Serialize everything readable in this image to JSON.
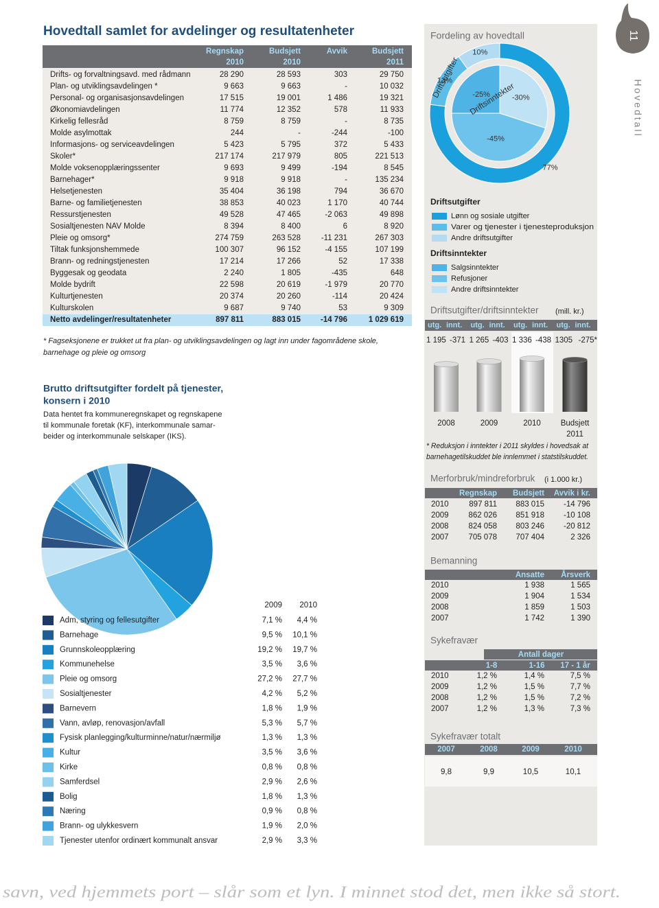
{
  "header": {
    "title": "Hovedtall samlet for avdelinger og resultatenheter",
    "page_number": "11",
    "section": "Hovedtall"
  },
  "main_table": {
    "columns": [
      [
        "Regnskap",
        "2010"
      ],
      [
        "Budsjett",
        "2010"
      ],
      [
        "Avvik"
      ],
      [
        "Budsjett",
        "2011"
      ]
    ],
    "rows": [
      [
        "Drifts- og forvaltningsavd. med rådmann",
        "28 290",
        "28 593",
        "303",
        "29 750"
      ],
      [
        "Plan- og utviklingsavdelingen *",
        "9 663",
        "9 663",
        "-",
        "10 032"
      ],
      [
        "Personal- og organisasjonsavdelingen",
        "17 515",
        "19 001",
        "1 486",
        "19 321"
      ],
      [
        "Økonomiavdelingen",
        "11 774",
        "12 352",
        "578",
        "11 933"
      ],
      [
        "Kirkelig fellesråd",
        "8 759",
        "8 759",
        "-",
        "8 735"
      ],
      [
        "Molde asylmottak",
        "244",
        "-",
        "-244",
        "-100"
      ],
      [
        "Informasjons- og serviceavdelingen",
        "5 423",
        "5 795",
        "372",
        "5 433"
      ],
      [
        "Skoler*",
        "217 174",
        "217 979",
        "805",
        "221 513"
      ],
      [
        "Molde voksenopplæringssenter",
        "9 693",
        "9 499",
        "-194",
        "8 545"
      ],
      [
        "Barnehager*",
        "9 918",
        "9 918",
        "-",
        "135 234"
      ],
      [
        "Helsetjenesten",
        "35 404",
        "36 198",
        "794",
        "36 670"
      ],
      [
        "Barne- og familietjenesten",
        "38 853",
        "40 023",
        "1 170",
        "40 744"
      ],
      [
        "Ressurstjenesten",
        "49 528",
        "47 465",
        "-2 063",
        "49 898"
      ],
      [
        "Sosialtjenesten NAV Molde",
        "8 394",
        "8 400",
        "6",
        "8 920"
      ],
      [
        "Pleie og omsorg*",
        "274 759",
        "263 528",
        "-11 231",
        "267 303"
      ],
      [
        "Tiltak funksjonshemmede",
        "100 307",
        "96 152",
        "-4 155",
        "107 199"
      ],
      [
        "Brann- og redningstjenesten",
        "17 214",
        "17 266",
        "52",
        "17 338"
      ],
      [
        "Byggesak og geodata",
        "2 240",
        "1 805",
        "-435",
        "648"
      ],
      [
        "Molde bydrift",
        "22 598",
        "20 619",
        "-1 979",
        "20 770"
      ],
      [
        "Kulturtjenesten",
        "20 374",
        "20 260",
        "-114",
        "20 424"
      ],
      [
        "Kulturskolen",
        "9 687",
        "9 740",
        "53",
        "9 309"
      ]
    ],
    "total": [
      "Netto avdelinger/resultatenheter",
      "897 811",
      "883 015",
      "-14 796",
      "1 029 619"
    ]
  },
  "footnote": [
    "* Fagseksjonene er trukket ut fra plan- og utviklingsavdelingen og lagt inn under fagområdene skole,",
    "barnehage og pleie og omsorg"
  ],
  "expenses": {
    "title": [
      "Brutto driftsutgifter fordelt på tjenester,",
      "konsern i 2010"
    ],
    "description": [
      "Data hentet fra kommuneregnskapet og regnskapene",
      "til kommunale foretak (KF), interkommunale samar-",
      "beider og interkommunale selskaper (IKS)."
    ],
    "years": [
      "2009",
      "2010"
    ],
    "items": [
      {
        "label": "Adm, styring og fellesutgifter",
        "v2009": "7,1 %",
        "v2010": "4,4 %",
        "color": "#1b3a66"
      },
      {
        "label": "Barnehage",
        "v2009": "9,5 %",
        "v2010": "10,1 %",
        "color": "#1f5d93"
      },
      {
        "label": "Grunnskoleopplæring",
        "v2009": "19,2 %",
        "v2010": "19,7 %",
        "color": "#1a7fc1"
      },
      {
        "label": "Kommunehelse",
        "v2009": "3,5 %",
        "v2010": "3,6 %",
        "color": "#22a3e0"
      },
      {
        "label": "Pleie og omsorg",
        "v2009": "27,2 %",
        "v2010": "27,7 %",
        "color": "#7cc6ec"
      },
      {
        "label": "Sosialtjenester",
        "v2009": "4,2 %",
        "v2010": "5,2 %",
        "color": "#c5e4f5"
      },
      {
        "label": "Barnevern",
        "v2009": "1,8 %",
        "v2010": "1,9 %",
        "color": "#2c4f80"
      },
      {
        "label": "Vann, avløp, renovasjon/avfall",
        "v2009": "5,3 %",
        "v2010": "5,7 %",
        "color": "#3170a8"
      },
      {
        "label": "Fysisk planlegging/kulturminne/natur/nærmiljø",
        "v2009": "1,3 %",
        "v2010": "1,3 %",
        "color": "#1f8fce"
      },
      {
        "label": "Kultur",
        "v2009": "3,5 %",
        "v2010": "3,6 %",
        "color": "#49b0e5"
      },
      {
        "label": "Kirke",
        "v2009": "0,8 %",
        "v2010": "0,8 %",
        "color": "#6cc0ea"
      },
      {
        "label": "Samferdsel",
        "v2009": "2,9 %",
        "v2010": "2,6 %",
        "color": "#93d2f0"
      },
      {
        "label": "Bolig",
        "v2009": "1,8 %",
        "v2010": "1,3 %",
        "color": "#1d5c90"
      },
      {
        "label": "Næring",
        "v2009": "0,9 %",
        "v2010": "0,8 %",
        "color": "#2b79b5"
      },
      {
        "label": "Brann- og ulykkesvern",
        "v2009": "1,9 %",
        "v2010": "2,0 %",
        "color": "#41a3dc"
      },
      {
        "label": "Tjenester utenfor ordinært kommunalt ansvar",
        "v2009": "2,9 %",
        "v2010": "3,3 %",
        "color": "#a2d7f1"
      }
    ]
  },
  "distribution": {
    "title": "Fordeling av hovedtall",
    "expenses_group": {
      "title": "Driftsutgifter",
      "items": [
        {
          "label": "Lønn og sosiale utgifter",
          "share": "77%",
          "color": "#1aa0dc"
        },
        {
          "label": "Varer og tjenester i tjenesteproduksjon",
          "share": "13%",
          "color": "#5cbde8"
        },
        {
          "label": "Andre driftsutgifter",
          "share": "10%",
          "color": "#b3dcf2"
        }
      ]
    },
    "income_group": {
      "title": "Driftsinntekter",
      "items": [
        {
          "label": "Salgsinntekter",
          "share": "-25%",
          "color": "#4fb3e5"
        },
        {
          "label": "Refusjoner",
          "share": "-45%",
          "color": "#6ec3ec"
        },
        {
          "label": "Andre driftsinntekter",
          "share": "-30%",
          "color": "#bfe2f5"
        }
      ]
    }
  },
  "balance": {
    "title": "Driftsutgifter/driftsinntekter",
    "unit": "(mill. kr.)",
    "head": [
      "utg.",
      "innt."
    ],
    "columns": [
      {
        "period": [
          "2008"
        ],
        "utg": "1 195",
        "innt": "-371"
      },
      {
        "period": [
          "2009"
        ],
        "utg": "1 265",
        "innt": "-403"
      },
      {
        "period": [
          "2010"
        ],
        "utg": "1 336",
        "innt": "-438"
      },
      {
        "period": [
          "Budsjett",
          "2011"
        ],
        "utg": "1305",
        "innt": "-275*"
      }
    ],
    "note": [
      "* Reduksjon i inntekter i 2011 skyldes i hovedsak at",
      "barnehagetilskuddet ble innlemmet i statstilskuddet."
    ]
  },
  "overspend": {
    "title": "Merforbruk/mindreforbruk",
    "unit": "(i 1.000 kr.)",
    "columns": [
      "Regnskap",
      "Budsjett",
      "Avvik i kr."
    ],
    "rows": [
      [
        "2010",
        "897 811",
        "883 015",
        "-14 796"
      ],
      [
        "2009",
        "862 026",
        "851 918",
        "-10 108"
      ],
      [
        "2008",
        "824 058",
        "803 246",
        "-20 812"
      ],
      [
        "2007",
        "705 078",
        "707 404",
        "2 326"
      ]
    ]
  },
  "staffing": {
    "title": "Bemanning",
    "columns": [
      "Ansatte",
      "Årsverk"
    ],
    "rows": [
      [
        "2010",
        "1 938",
        "1 565"
      ],
      [
        "2009",
        "1 904",
        "1 534"
      ],
      [
        "2008",
        "1 859",
        "1 503"
      ],
      [
        "2007",
        "1 742",
        "1 390"
      ]
    ]
  },
  "sick_leave": {
    "title": "Sykefravær",
    "group": "Antall dager",
    "columns": [
      "1-8",
      "1-16",
      "17 - 1 år"
    ],
    "rows": [
      [
        "2010",
        "1,2 %",
        "1,4 %",
        "7,5 %"
      ],
      [
        "2009",
        "1,2 %",
        "1,5 %",
        "7,7 %"
      ],
      [
        "2008",
        "1,2 %",
        "1,5 %",
        "7,2 %"
      ],
      [
        "2007",
        "1,2 %",
        "1,3 %",
        "7,3 %"
      ]
    ]
  },
  "sick_leave_total": {
    "title": "Sykefravær totalt",
    "years": [
      "2007",
      "2008",
      "2009",
      "2010"
    ],
    "values": [
      "9,8",
      "9,9",
      "10,5",
      "10,1"
    ]
  },
  "quote": "savn, ved hjemmets port – slår som et lyn. I minnet stod det, men ikke så stort."
}
